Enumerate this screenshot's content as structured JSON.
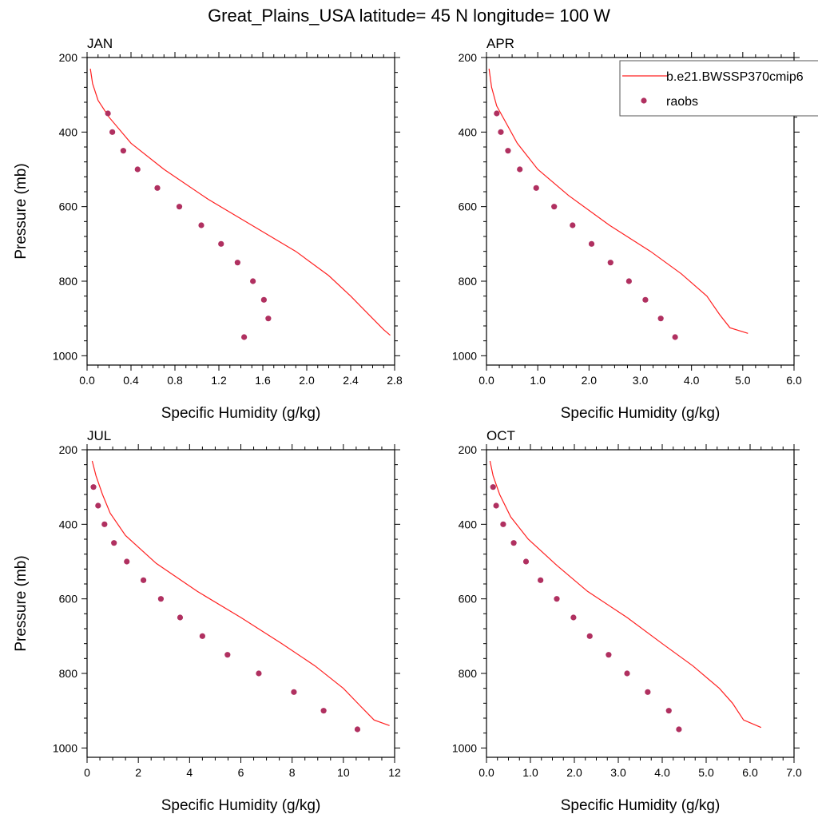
{
  "figure": {
    "title": "Great_Plains_USA  latitude= 45 N longitude= 100 W"
  },
  "legend": {
    "entries": [
      {
        "label": "b.e21.BWSSP370cmip6",
        "marker": "line",
        "color": "#ff2020"
      },
      {
        "label": "raobs",
        "marker": "dot",
        "color": "#b03060"
      }
    ]
  },
  "chart_data": [
    {
      "type": "line",
      "panel": "JAN",
      "xlabel": "Specific Humidity (g/kg)",
      "ylabel": "Pressure (mb)",
      "xlim": [
        0,
        2.8
      ],
      "ylim": [
        200,
        1025
      ],
      "y_inverted": true,
      "xticks": [
        0.0,
        0.4,
        0.8,
        1.2,
        1.6,
        2.0,
        2.4,
        2.8
      ],
      "xtick_labels": [
        "0.0",
        "0.4",
        "0.8",
        "1.2",
        "1.6",
        "2.0",
        "2.4",
        "2.8"
      ],
      "yticks": [
        200,
        400,
        600,
        800,
        1000
      ],
      "ytick_labels": [
        "200",
        "400",
        "600",
        "800",
        "1000"
      ],
      "series": [
        {
          "name": "b.e21.BWSSP370cmip6",
          "kind": "line",
          "color": "#ff2020",
          "x": [
            0.03,
            0.05,
            0.1,
            0.2,
            0.4,
            0.7,
            1.1,
            1.5,
            1.9,
            2.2,
            2.4,
            2.55,
            2.7,
            2.76
          ],
          "y": [
            230,
            270,
            315,
            360,
            430,
            500,
            580,
            650,
            720,
            785,
            840,
            885,
            930,
            945
          ]
        },
        {
          "name": "raobs",
          "kind": "scatter",
          "color": "#b03060",
          "x": [
            0.19,
            0.23,
            0.33,
            0.46,
            0.64,
            0.84,
            1.04,
            1.22,
            1.37,
            1.51,
            1.61,
            1.65,
            1.43
          ],
          "y": [
            350,
            400,
            450,
            500,
            550,
            600,
            650,
            700,
            750,
            800,
            850,
            900,
            950
          ]
        }
      ]
    },
    {
      "type": "line",
      "panel": "APR",
      "xlabel": "Specific Humidity (g/kg)",
      "ylabel": "",
      "xlim": [
        0,
        6.0
      ],
      "ylim": [
        200,
        1025
      ],
      "y_inverted": true,
      "xticks": [
        0.0,
        1.0,
        2.0,
        3.0,
        4.0,
        5.0,
        6.0
      ],
      "xtick_labels": [
        "0.0",
        "1.0",
        "2.0",
        "3.0",
        "4.0",
        "5.0",
        "6.0"
      ],
      "yticks": [
        200,
        400,
        600,
        800,
        1000
      ],
      "ytick_labels": [
        "200",
        "400",
        "600",
        "800",
        "1000"
      ],
      "series": [
        {
          "name": "b.e21.BWSSP370cmip6",
          "kind": "line",
          "color": "#ff2020",
          "x": [
            0.05,
            0.1,
            0.2,
            0.4,
            0.6,
            1.0,
            1.6,
            2.4,
            3.2,
            3.8,
            4.3,
            4.55,
            4.75,
            5.1
          ],
          "y": [
            230,
            280,
            330,
            380,
            430,
            500,
            570,
            650,
            720,
            780,
            840,
            890,
            925,
            940
          ]
        },
        {
          "name": "raobs",
          "kind": "scatter",
          "color": "#b03060",
          "x": [
            0.2,
            0.28,
            0.42,
            0.65,
            0.97,
            1.32,
            1.68,
            2.05,
            2.42,
            2.78,
            3.1,
            3.4,
            3.68
          ],
          "y": [
            350,
            400,
            450,
            500,
            550,
            600,
            650,
            700,
            750,
            800,
            850,
            900,
            950
          ]
        }
      ]
    },
    {
      "type": "line",
      "panel": "JUL",
      "xlabel": "Specific Humidity (g/kg)",
      "ylabel": "Pressure (mb)",
      "xlim": [
        0,
        12
      ],
      "ylim": [
        200,
        1025
      ],
      "y_inverted": true,
      "xticks": [
        0,
        2,
        4,
        6,
        8,
        10,
        12
      ],
      "xtick_labels": [
        "0",
        "2",
        "4",
        "6",
        "8",
        "10",
        "12"
      ],
      "yticks": [
        200,
        400,
        600,
        800,
        1000
      ],
      "ytick_labels": [
        "200",
        "400",
        "600",
        "800",
        "1000"
      ],
      "series": [
        {
          "name": "b.e21.BWSSP370cmip6",
          "kind": "line",
          "color": "#ff2020",
          "x": [
            0.2,
            0.35,
            0.6,
            0.9,
            1.5,
            2.7,
            4.3,
            6.0,
            7.6,
            8.9,
            10.0,
            10.7,
            11.2,
            11.8
          ],
          "y": [
            230,
            270,
            320,
            370,
            430,
            505,
            580,
            650,
            720,
            780,
            840,
            890,
            925,
            940
          ]
        },
        {
          "name": "raobs",
          "kind": "scatter",
          "color": "#b03060",
          "x": [
            0.25,
            0.43,
            0.68,
            1.05,
            1.55,
            2.2,
            2.88,
            3.63,
            4.5,
            5.48,
            6.7,
            8.07,
            9.23,
            10.55
          ],
          "y": [
            300,
            350,
            400,
            450,
            500,
            550,
            600,
            650,
            700,
            750,
            800,
            850,
            900,
            950
          ]
        }
      ]
    },
    {
      "type": "line",
      "panel": "OCT",
      "xlabel": "Specific Humidity (g/kg)",
      "ylabel": "",
      "xlim": [
        0,
        7.0
      ],
      "ylim": [
        200,
        1025
      ],
      "y_inverted": true,
      "xticks": [
        0.0,
        1.0,
        2.0,
        3.0,
        4.0,
        5.0,
        6.0,
        7.0
      ],
      "xtick_labels": [
        "0.0",
        "1.0",
        "2.0",
        "3.0",
        "4.0",
        "5.0",
        "6.0",
        "7.0"
      ],
      "yticks": [
        200,
        400,
        600,
        800,
        1000
      ],
      "ytick_labels": [
        "200",
        "400",
        "600",
        "800",
        "1000"
      ],
      "series": [
        {
          "name": "b.e21.BWSSP370cmip6",
          "kind": "line",
          "color": "#ff2020",
          "x": [
            0.08,
            0.15,
            0.3,
            0.55,
            0.95,
            1.6,
            2.3,
            3.2,
            4.0,
            4.7,
            5.3,
            5.6,
            5.85,
            6.25
          ],
          "y": [
            230,
            270,
            320,
            380,
            440,
            510,
            580,
            650,
            720,
            780,
            840,
            880,
            925,
            945
          ]
        },
        {
          "name": "raobs",
          "kind": "scatter",
          "color": "#b03060",
          "x": [
            0.15,
            0.22,
            0.38,
            0.62,
            0.9,
            1.23,
            1.6,
            1.98,
            2.35,
            2.78,
            3.2,
            3.67,
            4.15,
            4.38
          ],
          "y": [
            300,
            350,
            400,
            450,
            500,
            550,
            600,
            650,
            700,
            750,
            800,
            850,
            900,
            950
          ]
        }
      ]
    }
  ]
}
